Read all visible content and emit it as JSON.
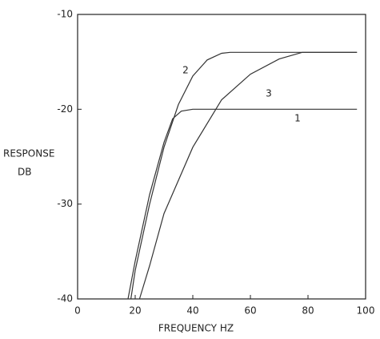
{
  "chart_data": {
    "type": "line",
    "x_label": "FREQUENCY  HZ",
    "y_label_lines": [
      "RESPONSE",
      "DB"
    ],
    "xlim": [
      0,
      100
    ],
    "ylim": [
      -40,
      -10
    ],
    "xticks": [
      0,
      20,
      40,
      60,
      80,
      100
    ],
    "yticks": [
      -40,
      -30,
      -20,
      -10
    ],
    "grid": false,
    "series": [
      {
        "name": "1",
        "color": "#333333",
        "x": [
          17.5,
          20,
          25,
          30,
          33,
          36,
          40,
          60,
          97
        ],
        "values": [
          -40,
          -36,
          -29,
          -23.5,
          -21,
          -20.2,
          -20,
          -20,
          -20
        ]
      },
      {
        "name": "2",
        "color": "#333333",
        "x": [
          18.5,
          20,
          25,
          30,
          35,
          40,
          45,
          50,
          53,
          97
        ],
        "values": [
          -40,
          -37,
          -30,
          -24,
          -19.5,
          -16.5,
          -14.8,
          -14.1,
          -14,
          -14
        ]
      },
      {
        "name": "3",
        "color": "#333333",
        "x": [
          21.5,
          25,
          30,
          40,
          50,
          60,
          70,
          78,
          97
        ],
        "values": [
          -40,
          -36.5,
          -31,
          -24,
          -19,
          -16.3,
          -14.7,
          -14,
          -14
        ]
      }
    ]
  }
}
